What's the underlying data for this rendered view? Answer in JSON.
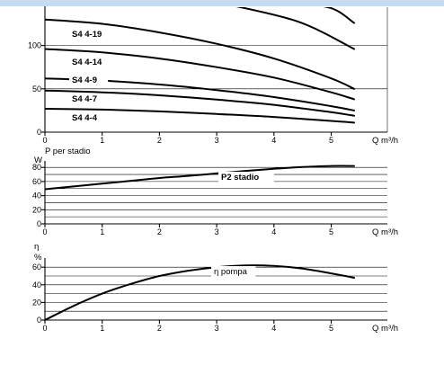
{
  "chart_data": [
    {
      "id": "head",
      "type": "line",
      "xlabel": "Q m³/h",
      "ylabel": "",
      "xlim": [
        0,
        5.4
      ],
      "ylim": [
        0,
        150
      ],
      "x_ticks": [
        "0",
        "1",
        "2",
        "3",
        "4",
        "5"
      ],
      "y_ticks": [
        "0",
        "50",
        "100"
      ],
      "grid": true,
      "series": [
        {
          "name": "S4 4-19",
          "x": [
            0,
            1,
            2,
            3,
            4,
            5,
            5.4
          ],
          "y": [
            130,
            125,
            115,
            102,
            85,
            62,
            50
          ]
        },
        {
          "name": "S4 4-14",
          "x": [
            0,
            1,
            2,
            3,
            4,
            5,
            5.4
          ],
          "y": [
            96,
            92,
            85,
            75,
            63,
            46,
            38
          ]
        },
        {
          "name": "S4 4-9",
          "x": [
            0,
            1,
            2,
            3,
            4,
            5,
            5.4
          ],
          "y": [
            62,
            59.5,
            55,
            48.5,
            40.5,
            30,
            25
          ]
        },
        {
          "name": "S4 4-7",
          "x": [
            0,
            1,
            2,
            3,
            4,
            5,
            5.4
          ],
          "y": [
            48,
            46,
            42.5,
            37.5,
            31.5,
            23,
            19
          ]
        },
        {
          "name": "S4 4-4",
          "x": [
            0,
            1,
            2,
            3,
            4,
            5,
            5.4
          ],
          "y": [
            27,
            26,
            24,
            21,
            17.5,
            13,
            11
          ]
        }
      ]
    },
    {
      "id": "power",
      "type": "line",
      "title": "P  per stadio",
      "xlabel": "Q m³/h",
      "ylabel": "W",
      "xlim": [
        0,
        5.4
      ],
      "ylim": [
        0,
        90
      ],
      "x_ticks": [
        "0",
        "1",
        "2",
        "3",
        "4",
        "5"
      ],
      "y_ticks": [
        "0",
        "20",
        "40",
        "60",
        "80"
      ],
      "grid": true,
      "series": [
        {
          "name": "P2 stadio",
          "x": [
            0,
            0.5,
            1,
            1.5,
            2,
            2.5,
            3,
            3.5,
            4,
            4.5,
            5,
            5.4
          ],
          "y": [
            49,
            53,
            57,
            61,
            65,
            68,
            71.5,
            75,
            78,
            80.5,
            82,
            82
          ]
        }
      ]
    },
    {
      "id": "efficiency",
      "type": "line",
      "title": "η",
      "xlabel": "Q m³/h",
      "ylabel": "%",
      "xlim": [
        0,
        5.4
      ],
      "ylim": [
        0,
        70
      ],
      "x_ticks": [
        "0",
        "1",
        "2",
        "3",
        "4",
        "5"
      ],
      "y_ticks": [
        "0",
        "20",
        "40",
        "60"
      ],
      "grid": true,
      "series": [
        {
          "name": "η pompa",
          "x": [
            0,
            0.5,
            1,
            1.5,
            2,
            2.5,
            3,
            3.5,
            4,
            4.5,
            5,
            5.4
          ],
          "y": [
            0,
            16,
            30,
            41,
            50,
            56,
            60,
            62,
            61.5,
            58.5,
            53,
            48
          ]
        }
      ]
    }
  ]
}
